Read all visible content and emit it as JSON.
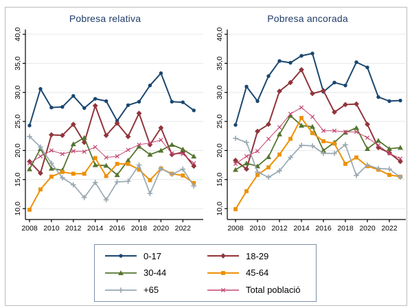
{
  "figure": {
    "background": "#ffffff",
    "frame_color": "#bcbcbc",
    "title_color": "#1f3c68",
    "axis_color": "#000000",
    "grid_color": "#e4e7ea",
    "legend_border_color": "#7d8fa8"
  },
  "legend": {
    "items": [
      {
        "label": "0-17",
        "series": 0
      },
      {
        "label": "18-29",
        "series": 1
      },
      {
        "label": "30-44",
        "series": 2
      },
      {
        "label": "45-64",
        "series": 3
      },
      {
        "label": "+65",
        "series": 4
      },
      {
        "label": "Total població",
        "series": 5
      }
    ]
  },
  "chart_data": [
    {
      "type": "line",
      "title": "Pobresa relativa",
      "x": [
        2008,
        2009,
        2010,
        2011,
        2012,
        2013,
        2014,
        2015,
        2016,
        2017,
        2018,
        2019,
        2020,
        2021,
        2022,
        2023
      ],
      "xticks": [
        2008,
        2010,
        2012,
        2014,
        2016,
        2018,
        2020,
        2022
      ],
      "yticks": [
        {
          "value": 10,
          "label": "10,0"
        },
        {
          "value": 15,
          "label": "15,0"
        },
        {
          "value": 20,
          "label": "20,0"
        },
        {
          "value": 25,
          "label": "25,0"
        },
        {
          "value": 30,
          "label": "30,0"
        },
        {
          "value": 35,
          "label": "35,0"
        },
        {
          "value": 40,
          "label": "40,0"
        }
      ],
      "ylim": [
        8,
        41
      ],
      "grid": true,
      "series": [
        {
          "name": "0-17",
          "marker": "circle",
          "color": "#1a476f",
          "line_width": 2,
          "values": [
            24.3,
            30.6,
            27.4,
            27.5,
            29.4,
            27.3,
            28.9,
            28.5,
            25.1,
            27.8,
            28.4,
            31.2,
            33.3,
            28.4,
            28.3,
            26.9
          ]
        },
        {
          "name": "18-29",
          "marker": "diamond",
          "color": "#90353b",
          "line_width": 2,
          "values": [
            18.1,
            16.1,
            22.7,
            22.6,
            24.5,
            21.4,
            27.7,
            22.6,
            24.7,
            22.4,
            26.4,
            21.0,
            23.9,
            19.3,
            19.7,
            17.3
          ]
        },
        {
          "name": "30-44",
          "marker": "triangle",
          "color": "#55752f",
          "line_width": 1.8,
          "values": [
            16.8,
            20.3,
            16.9,
            16.6,
            21.1,
            22.2,
            17.5,
            17.4,
            15.8,
            18.3,
            20.7,
            19.3,
            20.0,
            21.0,
            20.2,
            19.0
          ]
        },
        {
          "name": "45-64",
          "marker": "square",
          "color": "#ec9006",
          "line_width": 2,
          "values": [
            9.8,
            13.3,
            15.5,
            16.3,
            16.0,
            16.0,
            18.7,
            15.6,
            17.7,
            17.7,
            16.7,
            14.9,
            16.9,
            16.0,
            15.7,
            14.4
          ]
        },
        {
          "name": "+65",
          "marker": "plus",
          "color": "#99a8b2",
          "line_width": 1.7,
          "values": [
            22.4,
            20.6,
            17.8,
            15.3,
            14.1,
            11.9,
            14.5,
            11.5,
            14.6,
            14.7,
            17.5,
            12.6,
            16.9,
            15.9,
            16.8,
            13.9
          ]
        },
        {
          "name": "Total població",
          "marker": "x",
          "color": "#c2456f",
          "line_width": 1,
          "values": [
            17.8,
            19.0,
            20.0,
            19.4,
            19.9,
            19.8,
            20.6,
            18.8,
            19.0,
            20.1,
            21.0,
            21.3,
            21.8,
            19.5,
            19.4,
            17.8
          ]
        }
      ]
    },
    {
      "type": "line",
      "title": "Pobresa ancorada",
      "x": [
        2008,
        2009,
        2010,
        2011,
        2012,
        2013,
        2014,
        2015,
        2016,
        2017,
        2018,
        2019,
        2020,
        2021,
        2022,
        2023
      ],
      "xticks": [
        2008,
        2010,
        2012,
        2014,
        2016,
        2018,
        2020,
        2022
      ],
      "yticks": [
        {
          "value": 10,
          "label": "10,0"
        },
        {
          "value": 15,
          "label": "15,0"
        },
        {
          "value": 20,
          "label": "20,0"
        },
        {
          "value": 25,
          "label": "25,0"
        },
        {
          "value": 30,
          "label": "30,0"
        },
        {
          "value": 35,
          "label": "35,0"
        },
        {
          "value": 40,
          "label": "40,0"
        }
      ],
      "ylim": [
        8,
        41
      ],
      "grid": true,
      "series": [
        {
          "name": "0-17",
          "marker": "circle",
          "color": "#1a476f",
          "line_width": 2,
          "values": [
            24.4,
            31.0,
            28.5,
            32.8,
            35.4,
            35.1,
            36.3,
            36.7,
            30.1,
            31.7,
            31.2,
            35.2,
            34.3,
            29.2,
            28.5,
            28.6
          ]
        },
        {
          "name": "18-29",
          "marker": "diamond",
          "color": "#90353b",
          "line_width": 2,
          "values": [
            18.3,
            16.8,
            23.3,
            24.5,
            30.2,
            31.7,
            33.9,
            29.8,
            30.3,
            26.6,
            27.9,
            28.0,
            24.5,
            20.5,
            19.6,
            18.1
          ]
        },
        {
          "name": "30-44",
          "marker": "triangle",
          "color": "#55752f",
          "line_width": 1.8,
          "values": [
            16.7,
            17.8,
            17.3,
            18.9,
            22.8,
            26.0,
            24.3,
            24.1,
            20.0,
            21.4,
            23.1,
            23.9,
            20.3,
            21.7,
            20.3,
            20.5
          ]
        },
        {
          "name": "45-64",
          "marker": "square",
          "color": "#ec9006",
          "line_width": 2,
          "values": [
            9.9,
            13.0,
            15.8,
            17.1,
            19.3,
            22.0,
            25.6,
            23.0,
            21.6,
            21.2,
            17.7,
            18.8,
            17.3,
            16.7,
            15.8,
            15.5
          ]
        },
        {
          "name": "+65",
          "marker": "plus",
          "color": "#99a8b2",
          "line_width": 1.7,
          "values": [
            22.1,
            21.4,
            16.3,
            15.4,
            16.5,
            18.8,
            20.9,
            20.8,
            19.5,
            19.5,
            21.0,
            15.7,
            17.5,
            16.9,
            16.8,
            15.4
          ]
        },
        {
          "name": "Total població",
          "marker": "x",
          "color": "#c2456f",
          "line_width": 1,
          "values": [
            17.7,
            19.0,
            19.9,
            22.0,
            24.0,
            26.3,
            27.4,
            25.8,
            23.4,
            23.4,
            23.2,
            23.2,
            22.2,
            20.9,
            19.5,
            18.6
          ]
        }
      ]
    }
  ]
}
